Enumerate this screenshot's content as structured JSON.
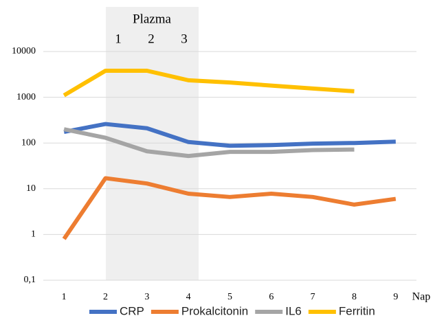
{
  "chart_data": {
    "type": "line",
    "annotation": {
      "text": "Plazma",
      "labels": [
        "1",
        "2",
        "3"
      ]
    },
    "xlabel": "Nap",
    "categories": [
      "1",
      "2",
      "3",
      "4",
      "5",
      "6",
      "7",
      "8",
      "9"
    ],
    "series": [
      {
        "name": "CRP",
        "color": "#4472c4",
        "values": [
          175,
          260,
          210,
          105,
          87,
          90,
          97,
          100,
          107
        ]
      },
      {
        "name": "Prokalcitonin",
        "color": "#ed7d31",
        "values": [
          0.8,
          17,
          13,
          7.8,
          6.6,
          7.8,
          6.6,
          4.5,
          6
        ]
      },
      {
        "name": "IL6",
        "color": "#a5a5a5",
        "values": [
          200,
          130,
          66,
          52,
          64,
          64,
          70,
          72,
          null
        ]
      },
      {
        "name": "Ferritin",
        "color": "#ffc000",
        "values": [
          1100,
          3800,
          3800,
          2350,
          2100,
          1800,
          1550,
          1350,
          null
        ]
      }
    ],
    "ylim": [
      0.1,
      10000
    ],
    "yticks": [
      {
        "value": 0.1,
        "label": "0,1"
      },
      1,
      10,
      100,
      1000,
      10000
    ],
    "log_y": true,
    "grid": true,
    "legend": "bottom"
  }
}
